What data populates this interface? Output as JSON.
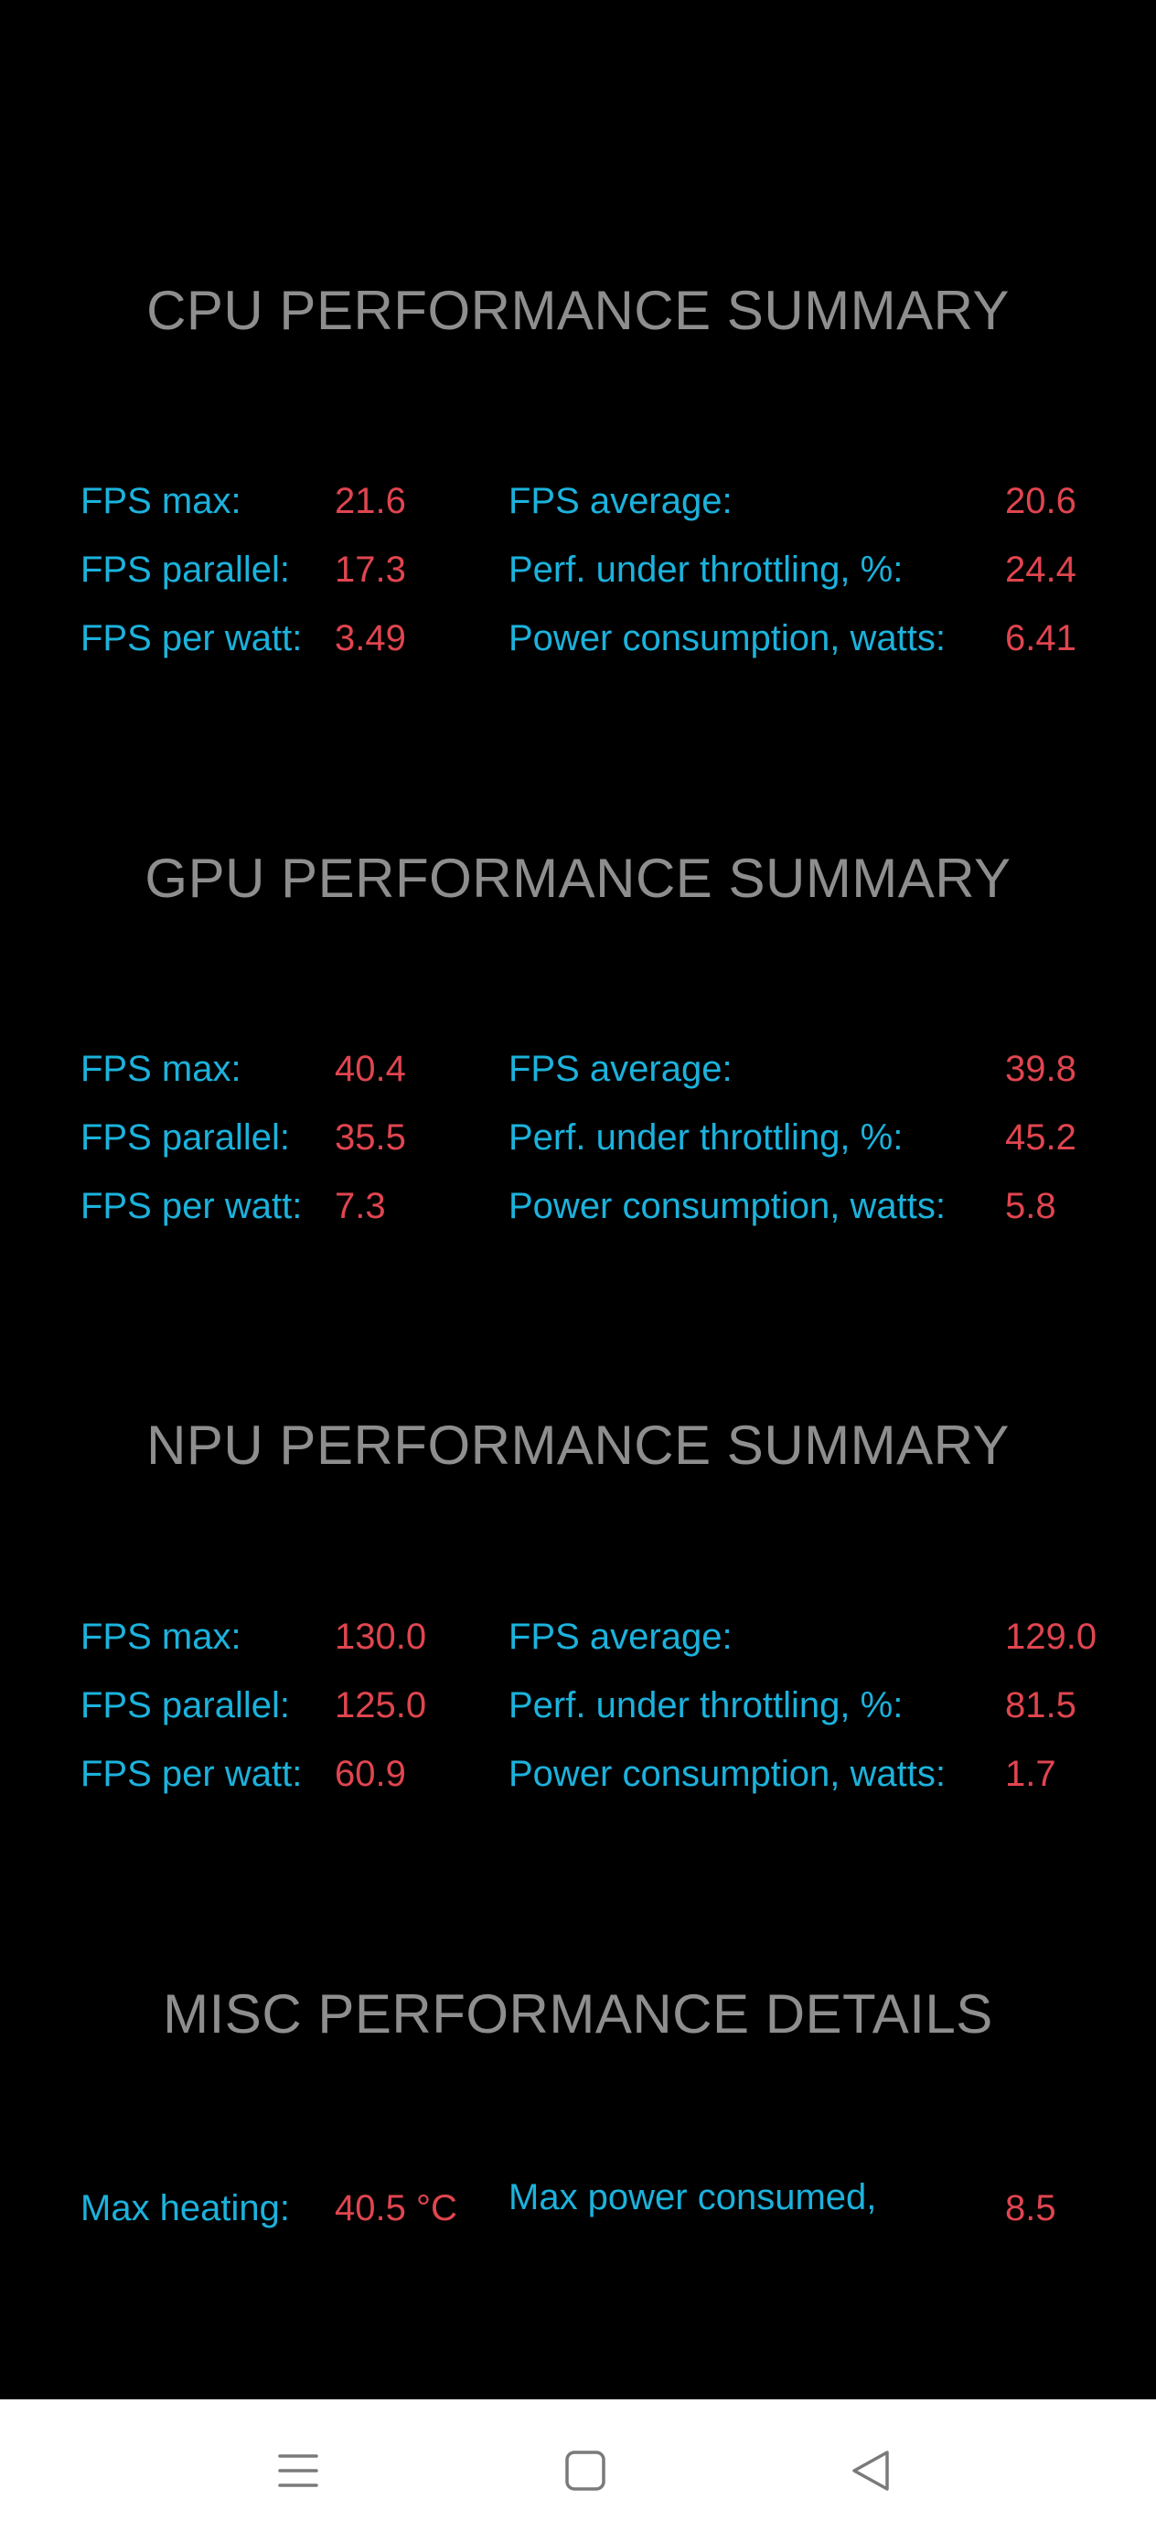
{
  "sections": [
    {
      "title": "CPU PERFORMANCE SUMMARY",
      "rows": [
        {
          "l1": "FPS max:",
          "v1": "21.6",
          "l2": "FPS average:",
          "v2": "20.6"
        },
        {
          "l1": "FPS parallel:",
          "v1": "17.3",
          "l2": "Perf. under throttling, %:",
          "v2": "24.4"
        },
        {
          "l1": "FPS per watt:",
          "v1": "3.49",
          "l2": "Power consumption, watts:",
          "v2": "6.41"
        }
      ]
    },
    {
      "title": "GPU PERFORMANCE SUMMARY",
      "rows": [
        {
          "l1": "FPS max:",
          "v1": "40.4",
          "l2": "FPS average:",
          "v2": "39.8"
        },
        {
          "l1": "FPS parallel:",
          "v1": "35.5",
          "l2": "Perf. under throttling, %:",
          "v2": "45.2"
        },
        {
          "l1": "FPS per watt:",
          "v1": "7.3",
          "l2": "Power consumption, watts:",
          "v2": "5.8"
        }
      ]
    },
    {
      "title": "NPU PERFORMANCE SUMMARY",
      "rows": [
        {
          "l1": "FPS max:",
          "v1": "130.0",
          "l2": "FPS average:",
          "v2": "129.0"
        },
        {
          "l1": "FPS parallel:",
          "v1": "125.0",
          "l2": "Perf. under throttling, %:",
          "v2": "81.5"
        },
        {
          "l1": "FPS per watt:",
          "v1": "60.9",
          "l2": "Power consumption, watts:",
          "v2": "1.7"
        }
      ]
    }
  ],
  "misc": {
    "title": "MISC PERFORMANCE DETAILS",
    "max_heating_label": "Max heating:",
    "max_heating_value": "40.5 °C",
    "max_power_label": "Max power consumed, watts:",
    "max_power_value": "8.5"
  },
  "navbar": {
    "menu_icon": "menu-icon",
    "home_icon": "square-home-icon",
    "back_icon": "triangle-back-icon"
  },
  "colors": {
    "background": "#000000",
    "title": "#8e8e8e",
    "label": "#1cb2dc",
    "value": "#e0454f",
    "navbar": "#ffffff",
    "nav_icon": "#7a7a7a"
  }
}
